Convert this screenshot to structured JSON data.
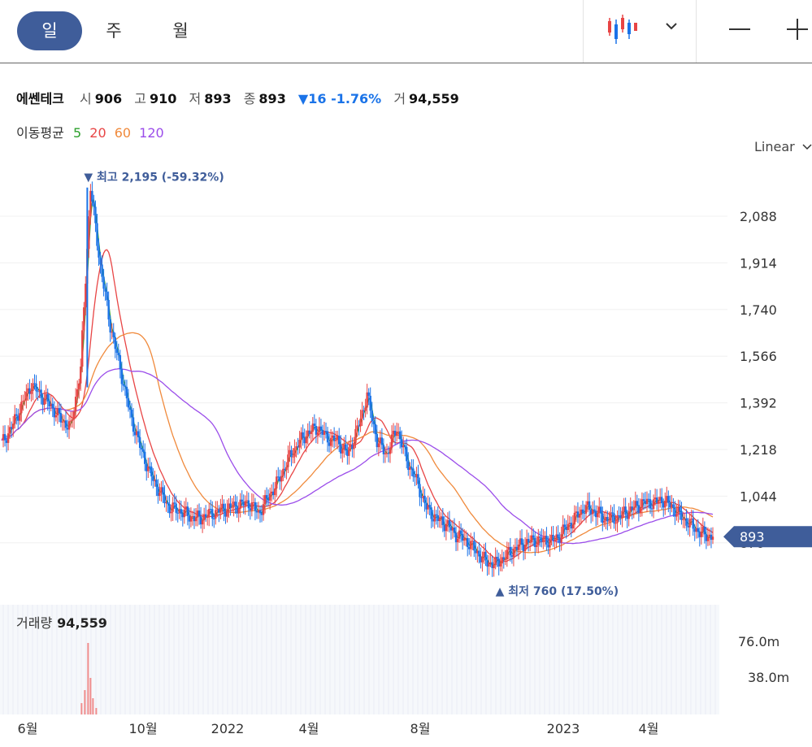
{
  "period_tabs": [
    {
      "label": "일",
      "active": true
    },
    {
      "label": "주",
      "active": false
    },
    {
      "label": "월",
      "active": false
    }
  ],
  "toolbar": {
    "chart_type_icon": "candlestick-icon",
    "dropdown_icon": "chevron-down-icon",
    "zoom_out_icon": "minus-icon",
    "zoom_in_icon": "plus-icon"
  },
  "stock": {
    "name": "에쎈테크",
    "open_label": "시",
    "open": "906",
    "high_label": "고",
    "high": "910",
    "low_label": "저",
    "low": "893",
    "close_label": "종",
    "close": "893",
    "change": "▼16 -1.76%",
    "volume_label": "거",
    "volume": "94,559"
  },
  "moving_averages": {
    "label": "이동평균",
    "items": [
      {
        "label": "5",
        "color": "#2ca02c"
      },
      {
        "label": "20",
        "color": "#e84545"
      },
      {
        "label": "60",
        "color": "#f08a3c"
      },
      {
        "label": "120",
        "color": "#9b4dea"
      }
    ]
  },
  "scale_mode": "Linear",
  "colors": {
    "up": "#e84545",
    "down": "#1a73e8",
    "accent": "#3f5d9a"
  },
  "chart_data": {
    "type": "candlestick",
    "y_axis_ticks": [
      "2,088",
      "1,914",
      "1,740",
      "1,566",
      "1,392",
      "1,218",
      "1,044",
      "870"
    ],
    "ylim": [
      760,
      2200
    ],
    "x_axis_ticks": [
      "6월",
      "10월",
      "2022",
      "4월",
      "8월",
      "2023",
      "4월"
    ],
    "high_annotation": "▼ 최고 2,195 (-59.32%)",
    "low_annotation": "▲ 최저 760 (17.50%)",
    "current_price_label": "893",
    "close_series": [
      1240,
      1300,
      1380,
      1460,
      1420,
      1380,
      1330,
      1300,
      1520,
      2195,
      1900,
      1680,
      1520,
      1350,
      1230,
      1130,
      1060,
      1000,
      990,
      970,
      960,
      975,
      990,
      1000,
      1010,
      1020,
      980,
      1040,
      1100,
      1180,
      1240,
      1280,
      1300,
      1260,
      1250,
      1200,
      1290,
      1420,
      1250,
      1200,
      1300,
      1180,
      1100,
      1000,
      960,
      940,
      900,
      880,
      840,
      800,
      790,
      820,
      850,
      870,
      880,
      880,
      880,
      920,
      960,
      1000,
      990,
      960,
      960,
      980,
      1000,
      1020,
      1020,
      1030,
      1000,
      960,
      930,
      900,
      893
    ],
    "volume_axis_ticks": [
      "76.0m",
      "38.0m"
    ],
    "volume_label": "거래량",
    "volume_value": "94,559"
  }
}
